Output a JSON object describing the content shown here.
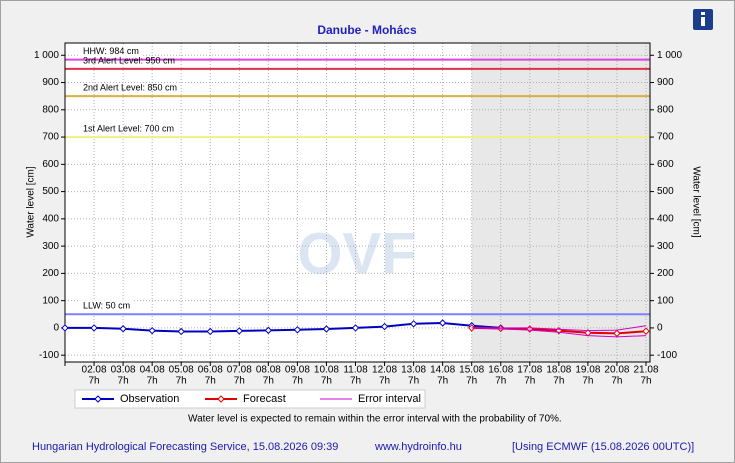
{
  "chart_data": {
    "type": "line",
    "title": "Danube - Mohács",
    "ylabel": "Water level [cm]",
    "y2label": "Water level [cm]",
    "watermark": "OVF",
    "categories": [
      null,
      "02.08",
      "03.08",
      "04.08",
      "05.08",
      "06.08",
      "07.08",
      "08.08",
      "09.08",
      "10.08",
      "11.08",
      "12.08",
      "13.08",
      "14.08",
      "15.08",
      "16.08",
      "17.08",
      "18.08",
      "19.08",
      "20.08",
      "21.08"
    ],
    "category_hours": [
      null,
      "7h",
      "7h",
      "7h",
      "7h",
      "7h",
      "7h",
      "7h",
      "7h",
      "7h",
      "7h",
      "7h",
      "7h",
      "7h",
      "7h",
      "7h",
      "7h",
      "7h",
      "7h",
      "7h",
      "7h"
    ],
    "forecast_start": 14,
    "ylim": [
      -125,
      1045
    ],
    "yticks": [
      -100,
      0,
      100,
      200,
      300,
      400,
      500,
      600,
      700,
      800,
      900,
      {
        "value": 1000,
        "label": "1 000"
      }
    ],
    "y2lim": [
      -125,
      1045
    ],
    "y2ticks": [
      -100,
      0,
      100,
      200,
      300,
      400,
      500,
      600,
      700,
      800,
      900,
      {
        "value": 1000,
        "label": "1 000"
      }
    ],
    "grid": true,
    "reference_lines": [
      {
        "label": "HHW: 984 cm",
        "value": 984,
        "color": "#e040e0"
      },
      {
        "label": "3rd Alert Level: 950 cm",
        "value": 950,
        "color": "#e0304a"
      },
      {
        "label": "2nd Alert Level: 850 cm",
        "value": 850,
        "color": "#d8b040"
      },
      {
        "label": "1st Alert Level: 700 cm",
        "value": 700,
        "color": "#f0f080"
      },
      {
        "label": "LLW: 50 cm",
        "value": 50,
        "color": "#8080ff"
      }
    ],
    "series": [
      {
        "name": "Observation",
        "color": "#0000c0",
        "marker": true,
        "values": [
          0,
          0,
          -3,
          -10,
          -13,
          -13,
          -11,
          -9,
          -7,
          -4,
          0,
          5,
          15,
          18,
          8,
          0,
          null,
          null,
          null,
          null,
          null
        ]
      },
      {
        "name": "Forecast",
        "color": "#e00000",
        "marker": true,
        "values": [
          null,
          null,
          null,
          null,
          null,
          null,
          null,
          null,
          null,
          null,
          null,
          null,
          null,
          null,
          0,
          -2,
          -4,
          -10,
          -18,
          -20,
          -12
        ]
      },
      {
        "name": "Error interval",
        "color": "#d000d0",
        "marker": false,
        "lower": [
          null,
          null,
          null,
          null,
          null,
          null,
          null,
          null,
          null,
          null,
          null,
          null,
          null,
          null,
          0,
          -4,
          -8,
          -16,
          -28,
          -33,
          -28
        ],
        "upper": [
          null,
          null,
          null,
          null,
          null,
          null,
          null,
          null,
          null,
          null,
          null,
          null,
          null,
          null,
          0,
          0,
          0,
          -5,
          -10,
          -8,
          8
        ]
      }
    ],
    "note": "Water level is expected to remain within the error interval with the probability of 70%.",
    "footer": {
      "left": "Hungarian Hydrological Forecasting Service, 15.08.2026 09:39",
      "center": "www.hydroinfo.hu",
      "right": "[Using ECMWF (15.08.2026  00UTC)]"
    }
  }
}
